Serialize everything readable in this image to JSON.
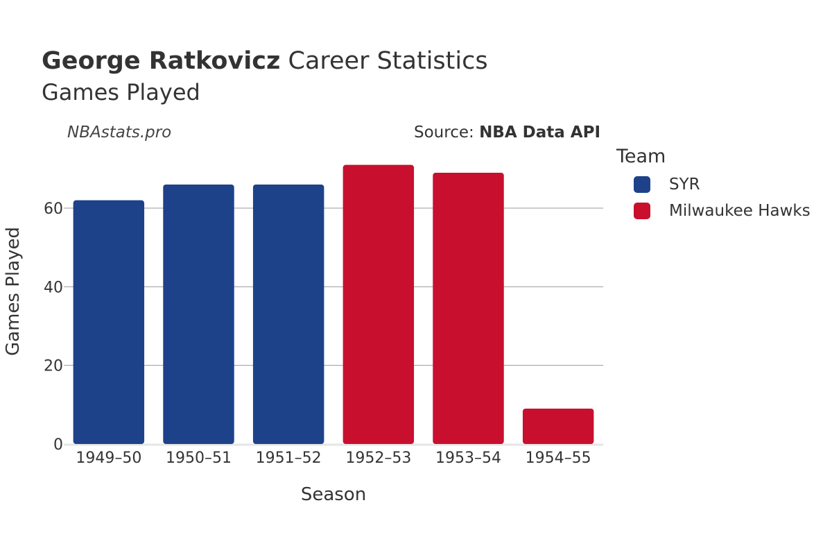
{
  "header": {
    "title_bold": "George Ratkovicz",
    "title_rest": " Career Statistics",
    "subtitle": "Games Played",
    "watermark": "NBAstats.pro",
    "source_prefix": "Source: ",
    "source_bold": "NBA Data API"
  },
  "legend": {
    "title": "Team",
    "items": [
      {
        "label": "SYR",
        "color": "#1d428a"
      },
      {
        "label": "Milwaukee Hawks",
        "color": "#c8102e"
      }
    ]
  },
  "chart_data": {
    "type": "bar",
    "title": "George Ratkovicz Career Statistics",
    "subtitle": "Games Played",
    "xlabel": "Season",
    "ylabel": "Games Played",
    "categories": [
      "1949–50",
      "1950–51",
      "1951–52",
      "1952–53",
      "1953–54",
      "1954–55"
    ],
    "values": [
      62,
      66,
      66,
      71,
      69,
      9
    ],
    "teams": [
      "SYR",
      "SYR",
      "SYR",
      "Milwaukee Hawks",
      "Milwaukee Hawks",
      "Milwaukee Hawks"
    ],
    "ylim": [
      0,
      75
    ],
    "yticks": [
      0,
      20,
      40,
      60
    ],
    "grid": true,
    "legend_position": "right"
  }
}
